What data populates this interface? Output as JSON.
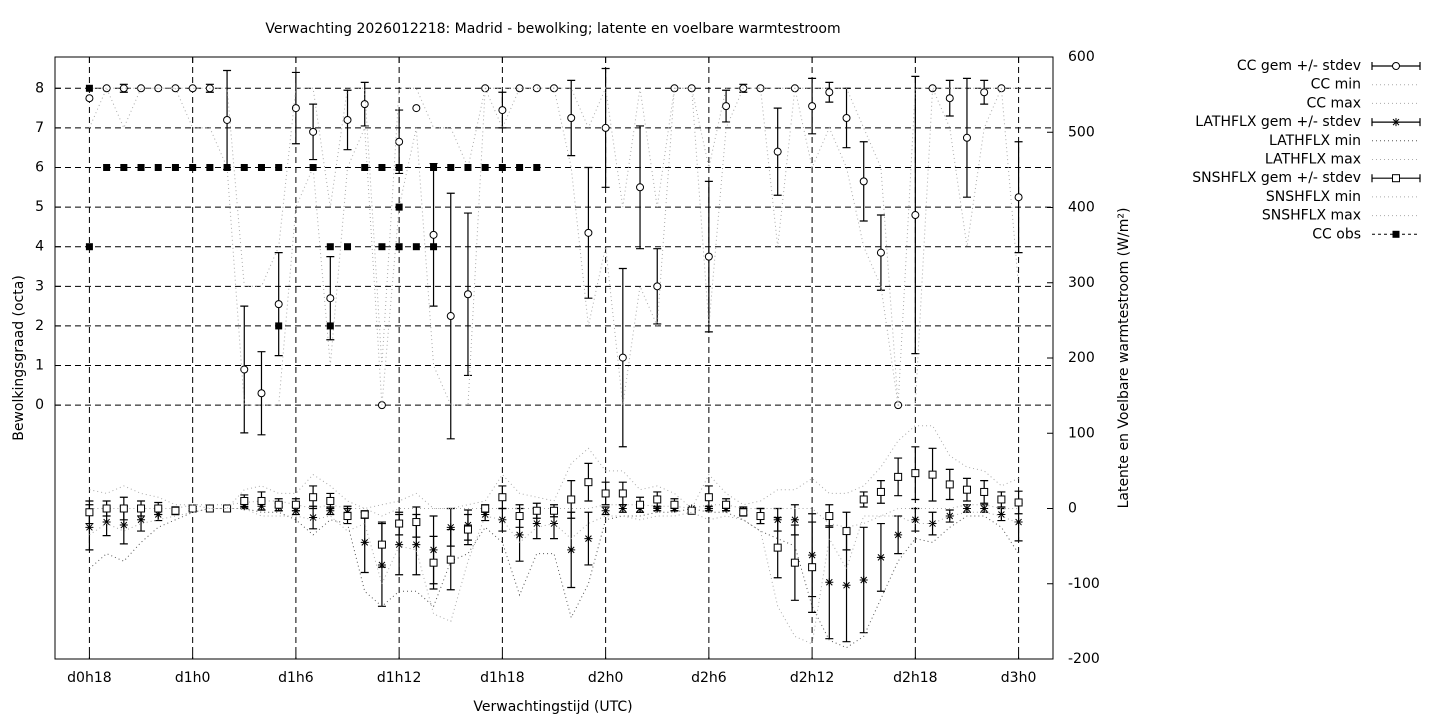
{
  "chart_data": {
    "type": "line",
    "title": "Verwachting 2026012218: Madrid - bewolking; latente en voelbare warmtestroom",
    "xlabel": "Verwachtingstijd (UTC)",
    "ylabel": "Bewolkingsgraad (octa)",
    "y2label": "Latente en Voelbare warmtestroom (W/m²)",
    "x": [
      0,
      1,
      2,
      3,
      4,
      5,
      6,
      7,
      8,
      9,
      10,
      11,
      12,
      13,
      14,
      15,
      16,
      17,
      18,
      19,
      20,
      21,
      22,
      23,
      24,
      25,
      26,
      27,
      28,
      29,
      30,
      31,
      32,
      33,
      34,
      35,
      36,
      37,
      38,
      39,
      40,
      41,
      42,
      43,
      44,
      45,
      46,
      47,
      48,
      49,
      50,
      51,
      52,
      53,
      54
    ],
    "xlim": [
      -2,
      56
    ],
    "xticks": [
      {
        "value": 0,
        "label": "d0h18"
      },
      {
        "value": 6,
        "label": "d1h0"
      },
      {
        "value": 12,
        "label": "d1h6"
      },
      {
        "value": 18,
        "label": "d1h12"
      },
      {
        "value": 24,
        "label": "d1h18"
      },
      {
        "value": 30,
        "label": "d2h0"
      },
      {
        "value": 36,
        "label": "d2h6"
      },
      {
        "value": 42,
        "label": "d2h12"
      },
      {
        "value": 48,
        "label": "d2h18"
      },
      {
        "value": 54,
        "label": "d3h0"
      }
    ],
    "ylim": [
      -6.41,
      8.79
    ],
    "yticks": [
      0,
      1,
      2,
      3,
      4,
      5,
      6,
      7,
      8
    ],
    "y2lim": [
      -200,
      600
    ],
    "y2ticks": [
      -200,
      -100,
      0,
      100,
      200,
      300,
      400,
      500,
      600
    ],
    "grid": true,
    "legend": "outside-top-right",
    "series": [
      {
        "name": "CC gem +/- stdev",
        "color": "#000000",
        "style": "errorbar",
        "marker": "circle",
        "axis": "y",
        "values": [
          7.75,
          8,
          8,
          8,
          8,
          8,
          8,
          8,
          7.2,
          0.9,
          0.3,
          2.55,
          7.5,
          6.9,
          2.7,
          7.2,
          7.6,
          0,
          6.65,
          7.5,
          4.3,
          2.25,
          2.8,
          8,
          7.45,
          8,
          8,
          8,
          7.25,
          4.35,
          7.0,
          1.2,
          5.5,
          3.0,
          8,
          8,
          3.75,
          7.55,
          8,
          8,
          6.4,
          8,
          7.55,
          7.9,
          7.25,
          5.65,
          3.85,
          0,
          4.8,
          8,
          7.75,
          6.75,
          7.9,
          8,
          5.25
        ],
        "errors": [
          0,
          0,
          0.1,
          0,
          0,
          0,
          0,
          0.1,
          1.25,
          1.6,
          1.05,
          1.3,
          0.9,
          0.7,
          1.05,
          0.75,
          0.55,
          0,
          0.8,
          0,
          1.8,
          3.1,
          2.05,
          0,
          0.45,
          0,
          0,
          0,
          0.95,
          1.65,
          1.5,
          2.25,
          1.55,
          0.95,
          0,
          0,
          1.9,
          0.4,
          0.1,
          0,
          1.1,
          0,
          0.7,
          0.25,
          0.75,
          1.0,
          0.95,
          0,
          3.5,
          0,
          0.45,
          1.5,
          0.3,
          0,
          1.4
        ]
      },
      {
        "name": "CC min",
        "color": "#aaaaaa",
        "style": "dotted",
        "axis": "y",
        "values": [
          7,
          8,
          7,
          8,
          8,
          8,
          7,
          7,
          6,
          0,
          0,
          0,
          5,
          6,
          1,
          6,
          7,
          0,
          5,
          7,
          1,
          0,
          0,
          8,
          7,
          8,
          8,
          8,
          6,
          2,
          4,
          0,
          3,
          2,
          8,
          8,
          2,
          7,
          8,
          8,
          4,
          8,
          6,
          7,
          6,
          4,
          3,
          0,
          0,
          8,
          7,
          4,
          7,
          8,
          3
        ]
      },
      {
        "name": "CC max",
        "color": "#aaaaaa",
        "style": "dotted",
        "axis": "y",
        "values": [
          8,
          8,
          8,
          8,
          8,
          8,
          8,
          8,
          8,
          3,
          3,
          4,
          8,
          8,
          5,
          8,
          8,
          1,
          8,
          8,
          7,
          7,
          6,
          8,
          8,
          8,
          8,
          8,
          8,
          7,
          8,
          5,
          8,
          5,
          8,
          8,
          6,
          8,
          8,
          8,
          8,
          8,
          8,
          8,
          8,
          7,
          6,
          0,
          8,
          8,
          8,
          8,
          8,
          8,
          8
        ]
      },
      {
        "name": "LATHFLX gem +/- stdev",
        "color": "#000000",
        "style": "errorbar",
        "marker": "asterisk",
        "axis": "y2",
        "values": [
          -25,
          -18,
          -22,
          -15,
          -8,
          -3,
          0,
          0,
          0,
          3,
          3,
          2,
          -3,
          -12,
          -3,
          -5,
          -45,
          -75,
          -48,
          -48,
          -55,
          -25,
          -22,
          -8,
          -15,
          -35,
          -20,
          -20,
          -55,
          -40,
          -3,
          0,
          0,
          0,
          0,
          0,
          0,
          0,
          -3,
          -10,
          -15,
          -15,
          -62,
          -98,
          -102,
          -95,
          -65,
          -35,
          -15,
          -20,
          -10,
          0,
          0,
          -8,
          -18
        ],
        "errors": [
          30,
          18,
          25,
          15,
          8,
          5,
          3,
          0,
          0,
          3,
          5,
          5,
          5,
          15,
          5,
          8,
          40,
          55,
          40,
          40,
          45,
          25,
          20,
          8,
          15,
          35,
          20,
          20,
          50,
          35,
          5,
          5,
          5,
          3,
          3,
          0,
          3,
          3,
          5,
          10,
          15,
          20,
          55,
          75,
          75,
          70,
          45,
          25,
          15,
          15,
          8,
          5,
          5,
          8,
          25
        ]
      },
      {
        "name": "LATHFLX min",
        "color": "#555555",
        "style": "dotted",
        "axis": "y2",
        "values": [
          -80,
          -60,
          -70,
          -45,
          -25,
          -15,
          -5,
          0,
          0,
          0,
          -5,
          -5,
          -15,
          -35,
          -15,
          -20,
          -110,
          -130,
          -110,
          -110,
          -130,
          -70,
          -60,
          -25,
          -45,
          -115,
          -60,
          -60,
          -145,
          -100,
          -15,
          -10,
          -10,
          -5,
          -5,
          0,
          -5,
          -5,
          -15,
          -30,
          -40,
          -50,
          -130,
          -175,
          -185,
          -170,
          -120,
          -70,
          -40,
          -45,
          -25,
          -10,
          -10,
          -25,
          -60
        ]
      },
      {
        "name": "LATHFLX max",
        "color": "#aaaaaa",
        "style": "dotted",
        "axis": "y2",
        "values": [
          0,
          0,
          0,
          0,
          0,
          0,
          5,
          5,
          5,
          8,
          10,
          10,
          5,
          0,
          5,
          0,
          0,
          -10,
          0,
          0,
          0,
          0,
          0,
          0,
          0,
          0,
          0,
          0,
          0,
          0,
          5,
          5,
          5,
          3,
          3,
          0,
          5,
          5,
          0,
          0,
          0,
          0,
          0,
          -20,
          -25,
          -20,
          -10,
          0,
          0,
          0,
          0,
          5,
          5,
          0,
          0
        ]
      },
      {
        "name": "SNSHFLX gem +/- stdev",
        "color": "#000000",
        "style": "errorbar",
        "marker": "square",
        "axis": "y2",
        "values": [
          -5,
          0,
          0,
          0,
          0,
          -3,
          0,
          0,
          0,
          10,
          10,
          5,
          5,
          15,
          10,
          -10,
          -8,
          -48,
          -20,
          -18,
          -72,
          -68,
          -28,
          0,
          15,
          -10,
          -3,
          -3,
          12,
          35,
          20,
          20,
          5,
          12,
          5,
          -3,
          15,
          5,
          -5,
          -10,
          -52,
          -72,
          -78,
          -10,
          -30,
          12,
          22,
          42,
          47,
          45,
          32,
          25,
          22,
          12,
          8
        ],
        "errors": [
          15,
          10,
          15,
          10,
          8,
          5,
          3,
          0,
          0,
          8,
          12,
          8,
          8,
          15,
          10,
          10,
          5,
          30,
          15,
          20,
          35,
          40,
          20,
          5,
          15,
          15,
          10,
          8,
          25,
          25,
          15,
          15,
          10,
          10,
          8,
          2,
          15,
          8,
          5,
          10,
          40,
          50,
          60,
          15,
          25,
          10,
          15,
          25,
          35,
          35,
          20,
          15,
          15,
          10,
          15
        ]
      },
      {
        "name": "SNSHFLX min",
        "color": "#aaaaaa",
        "style": "dotted",
        "axis": "y2",
        "values": [
          -35,
          -20,
          -30,
          -20,
          -15,
          -10,
          -5,
          0,
          0,
          0,
          -10,
          -10,
          -10,
          -15,
          -10,
          -30,
          -20,
          -100,
          -50,
          -55,
          -140,
          -150,
          -70,
          -10,
          -15,
          -45,
          -25,
          -20,
          -40,
          -20,
          -10,
          -10,
          -15,
          -10,
          -10,
          -5,
          -15,
          -10,
          -15,
          -30,
          -130,
          -170,
          -180,
          -40,
          -80,
          -10,
          -10,
          -10,
          -20,
          -20,
          -10,
          -5,
          -5,
          -10,
          -20
        ]
      },
      {
        "name": "SNSHFLX max",
        "color": "#aaaaaa",
        "style": "dotted",
        "axis": "y2",
        "values": [
          25,
          20,
          30,
          20,
          15,
          5,
          5,
          0,
          0,
          25,
          30,
          20,
          20,
          45,
          30,
          10,
          0,
          5,
          10,
          20,
          0,
          0,
          5,
          10,
          45,
          20,
          15,
          10,
          60,
          80,
          50,
          50,
          25,
          30,
          20,
          0,
          45,
          20,
          5,
          10,
          25,
          25,
          40,
          20,
          20,
          30,
          55,
          90,
          110,
          110,
          70,
          55,
          50,
          30,
          40
        ]
      },
      {
        "name": "CC obs",
        "color": "#000000",
        "style": "points",
        "marker": "filledsquare",
        "axis": "y",
        "x": [
          0,
          0,
          1,
          2,
          3,
          4,
          5,
          6,
          7,
          8,
          9,
          10,
          11,
          11,
          13,
          14,
          14,
          15,
          16,
          17,
          17,
          18,
          18,
          18,
          19,
          20,
          20,
          21,
          22,
          23,
          24,
          25,
          26
        ],
        "values": [
          8,
          4,
          6,
          6,
          6,
          6,
          6,
          6,
          6,
          6,
          6,
          6,
          6,
          2,
          6,
          4,
          2,
          4,
          6,
          6,
          4,
          6,
          4,
          5,
          4,
          6,
          4,
          6,
          6,
          6,
          6,
          6,
          6
        ]
      }
    ]
  }
}
